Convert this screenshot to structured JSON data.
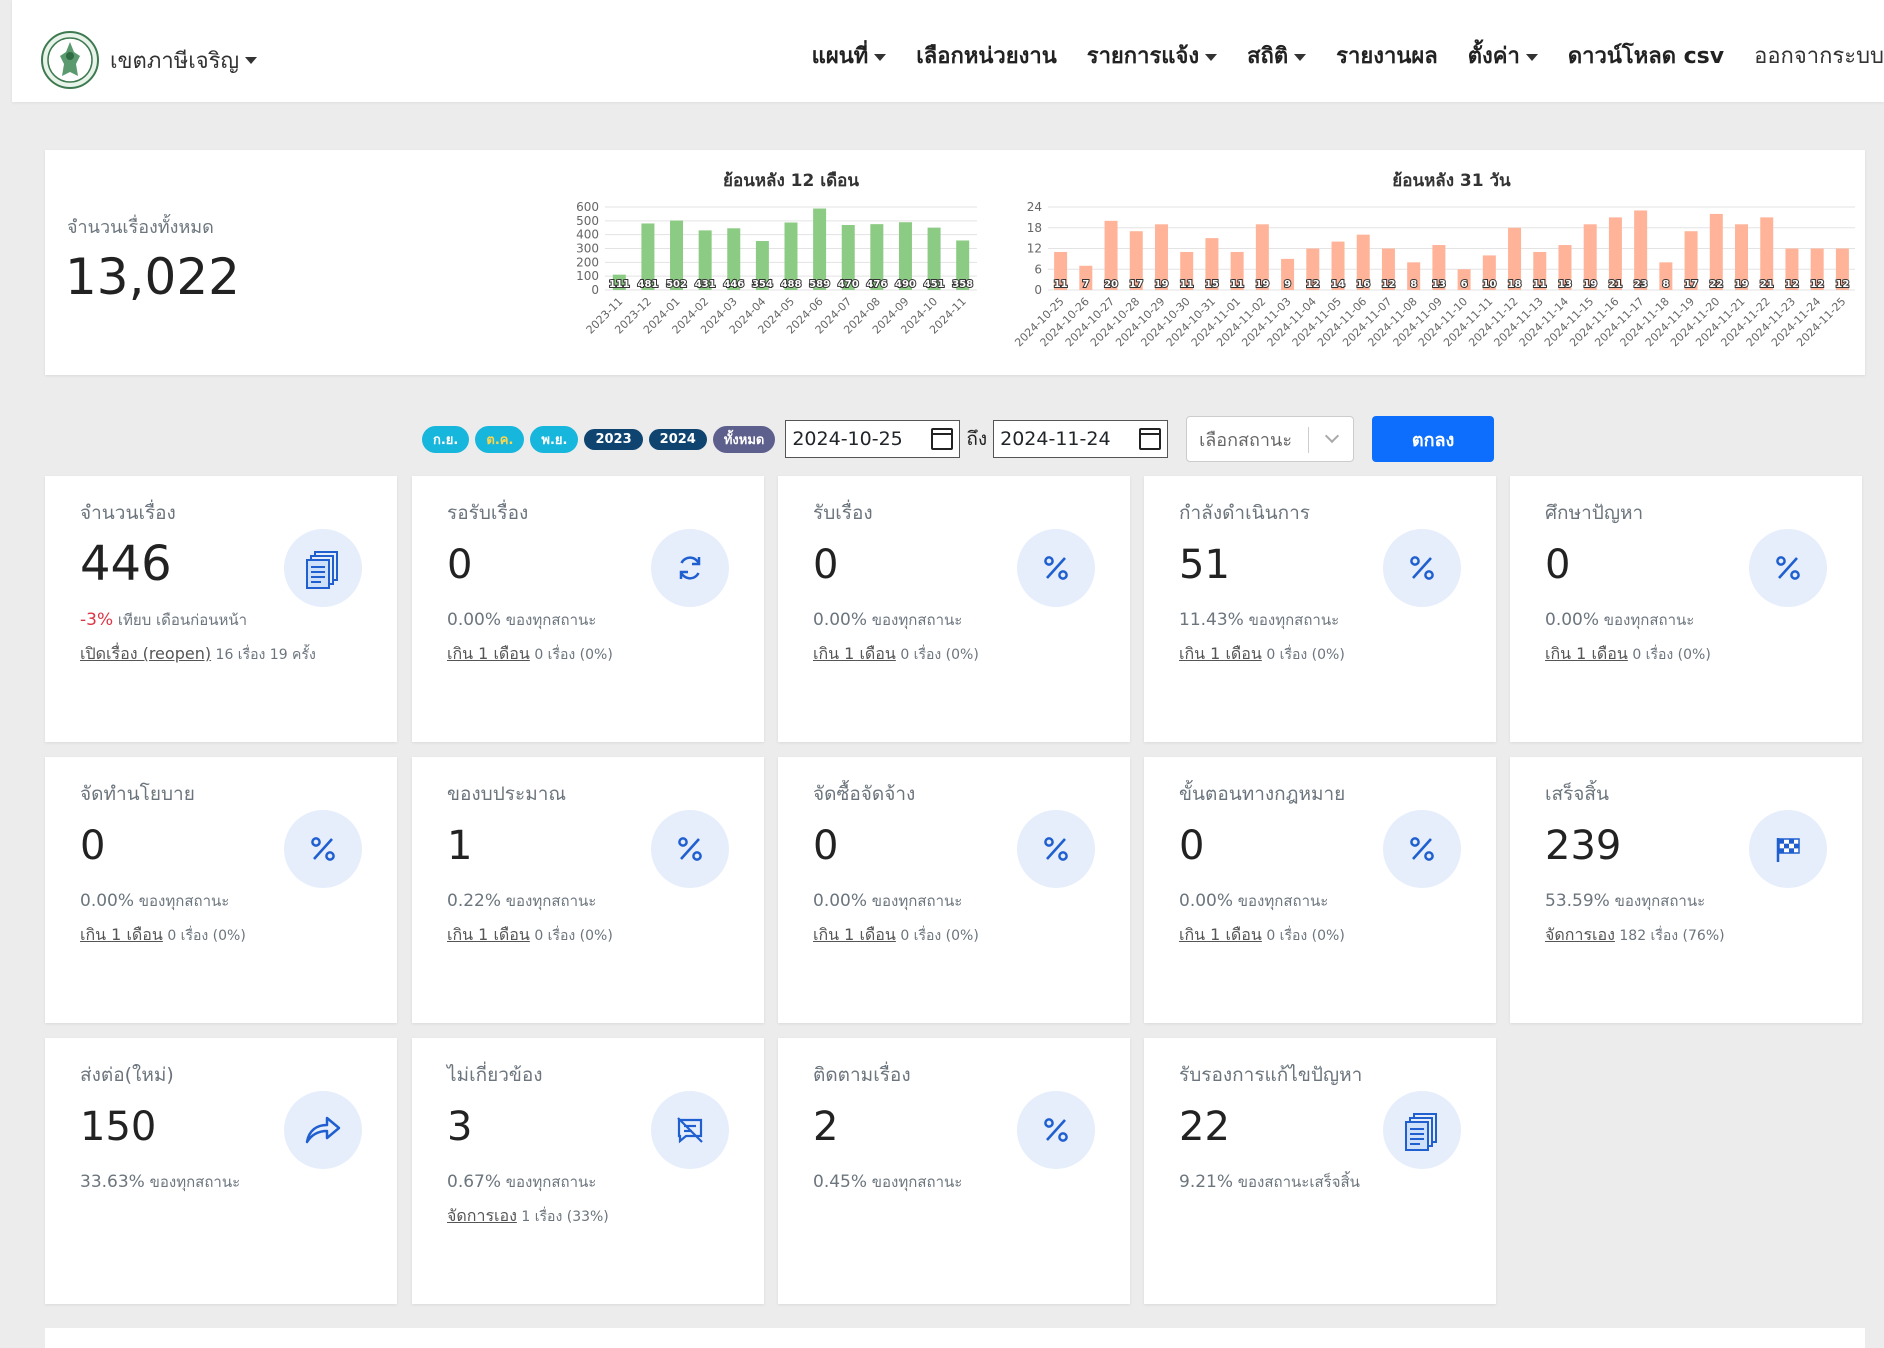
{
  "navbar": {
    "brand": "เขตภาษีเจริญ",
    "menu": [
      "แผนที่",
      "เลือกหน่วยงาน",
      "รายการแจ้ง",
      "สถิติ",
      "รายงานผล",
      "ตั้งค่า",
      "ดาวน์โหลด csv",
      "ออกจากระบบ"
    ]
  },
  "summary": {
    "total_label": "จำนวนเรื่องทั้งหมด",
    "total_value": "13,022"
  },
  "chart_data": [
    {
      "type": "bar",
      "title": "ย้อนหลัง 12 เดือน",
      "categories": [
        "2023-11",
        "2023-12",
        "2024-01",
        "2024-02",
        "2024-03",
        "2024-04",
        "2024-05",
        "2024-06",
        "2024-07",
        "2024-08",
        "2024-09",
        "2024-10",
        "2024-11"
      ],
      "values": [
        111,
        481,
        502,
        431,
        446,
        354,
        488,
        589,
        470,
        476,
        490,
        451,
        358
      ],
      "yticks": [
        0,
        100,
        200,
        300,
        400,
        500,
        600
      ],
      "ylim": [
        0,
        600
      ],
      "color": "#8ccb84",
      "grid": true
    },
    {
      "type": "bar",
      "title": "ย้อนหลัง 31 วัน",
      "categories": [
        "2024-10-25",
        "2024-10-26",
        "2024-10-27",
        "2024-10-28",
        "2024-10-29",
        "2024-10-30",
        "2024-10-31",
        "2024-11-01",
        "2024-11-02",
        "2024-11-03",
        "2024-11-04",
        "2024-11-05",
        "2024-11-06",
        "2024-11-07",
        "2024-11-08",
        "2024-11-09",
        "2024-11-10",
        "2024-11-11",
        "2024-11-12",
        "2024-11-13",
        "2024-11-14",
        "2024-11-15",
        "2024-11-16",
        "2024-11-17",
        "2024-11-18",
        "2024-11-19",
        "2024-11-20",
        "2024-11-21",
        "2024-11-22",
        "2024-11-23",
        "2024-11-24",
        "2024-11-25"
      ],
      "values": [
        11,
        7,
        20,
        17,
        19,
        11,
        15,
        11,
        19,
        9,
        12,
        14,
        16,
        12,
        8,
        13,
        6,
        10,
        18,
        11,
        13,
        19,
        21,
        23,
        8,
        17,
        22,
        19,
        21,
        12,
        12,
        12
      ],
      "yticks": [
        0,
        6,
        12,
        18,
        24
      ],
      "ylim": [
        0,
        24
      ],
      "color": "#ffb49a",
      "grid": true
    }
  ],
  "filters": {
    "pills": [
      "ก.ย.",
      "ต.ค.",
      "พ.ย.",
      "2023",
      "2024",
      "ทั้งหมด"
    ],
    "date_from": "2024-10-25",
    "to_label": "ถึง",
    "date_to": "2024-11-24",
    "status_placeholder": "เลือกสถานะ",
    "submit": "ตกลง"
  },
  "cards": [
    {
      "title": "จำนวนเรื่อง",
      "value": "446",
      "icon": "documents-icon",
      "change": "-3%",
      "change_text": "เทียบ เดือนก่อนหน้า",
      "link": "เปิดเรื่อง (reopen)",
      "link_text": "16 เรื่อง 19 ครั้ง"
    },
    {
      "title": "รอรับเรื่อง",
      "value": "0",
      "icon": "refresh-icon",
      "pct": "0.00%",
      "pct_text": "ของทุกสถานะ",
      "link": "เกิน 1 เดือน",
      "link_text": "0 เรื่อง (0%)"
    },
    {
      "title": "รับเรื่อง",
      "value": "0",
      "icon": "percent-icon",
      "pct": "0.00%",
      "pct_text": "ของทุกสถานะ",
      "link": "เกิน 1 เดือน",
      "link_text": "0 เรื่อง (0%)"
    },
    {
      "title": "กำลังดำเนินการ",
      "value": "51",
      "icon": "percent-icon",
      "pct": "11.43%",
      "pct_text": "ของทุกสถานะ",
      "link": "เกิน 1 เดือน",
      "link_text": "0 เรื่อง (0%)"
    },
    {
      "title": "ศึกษาปัญหา",
      "value": "0",
      "icon": "percent-icon",
      "pct": "0.00%",
      "pct_text": "ของทุกสถานะ",
      "link": "เกิน 1 เดือน",
      "link_text": "0 เรื่อง (0%)"
    },
    {
      "title": "จัดทำนโยบาย",
      "value": "0",
      "icon": "percent-icon",
      "pct": "0.00%",
      "pct_text": "ของทุกสถานะ",
      "link": "เกิน 1 เดือน",
      "link_text": "0 เรื่อง (0%)"
    },
    {
      "title": "ของบประมาณ",
      "value": "1",
      "icon": "percent-icon",
      "pct": "0.22%",
      "pct_text": "ของทุกสถานะ",
      "link": "เกิน 1 เดือน",
      "link_text": "0 เรื่อง (0%)"
    },
    {
      "title": "จัดซื้อจัดจ้าง",
      "value": "0",
      "icon": "percent-icon",
      "pct": "0.00%",
      "pct_text": "ของทุกสถานะ",
      "link": "เกิน 1 เดือน",
      "link_text": "0 เรื่อง (0%)"
    },
    {
      "title": "ขั้นตอนทางกฎหมาย",
      "value": "0",
      "icon": "percent-icon",
      "pct": "0.00%",
      "pct_text": "ของทุกสถานะ",
      "link": "เกิน 1 เดือน",
      "link_text": "0 เรื่อง (0%)"
    },
    {
      "title": "เสร็จสิ้น",
      "value": "239",
      "icon": "checkered-flag-icon",
      "pct": "53.59%",
      "pct_text": "ของทุกสถานะ",
      "link": "จัดการเอง",
      "link_text": "182 เรื่อง (76%)"
    },
    {
      "title": "ส่งต่อ(ใหม่)",
      "value": "150",
      "icon": "forward-arrow-icon",
      "pct": "33.63%",
      "pct_text": "ของทุกสถานะ"
    },
    {
      "title": "ไม่เกี่ยวข้อง",
      "value": "3",
      "icon": "chat-off-icon",
      "pct": "0.67%",
      "pct_text": "ของทุกสถานะ",
      "link": "จัดการเอง",
      "link_text": "1 เรื่อง (33%)"
    },
    {
      "title": "ติดตามเรื่อง",
      "value": "2",
      "icon": "percent-icon",
      "pct": "0.45%",
      "pct_text": "ของทุกสถานะ"
    },
    {
      "title": "รับรองการแก้ไขปัญหา",
      "value": "22",
      "icon": "documents-icon",
      "pct": "9.21%",
      "pct_text": "ของสถานะเสร็จสิ้น"
    }
  ]
}
